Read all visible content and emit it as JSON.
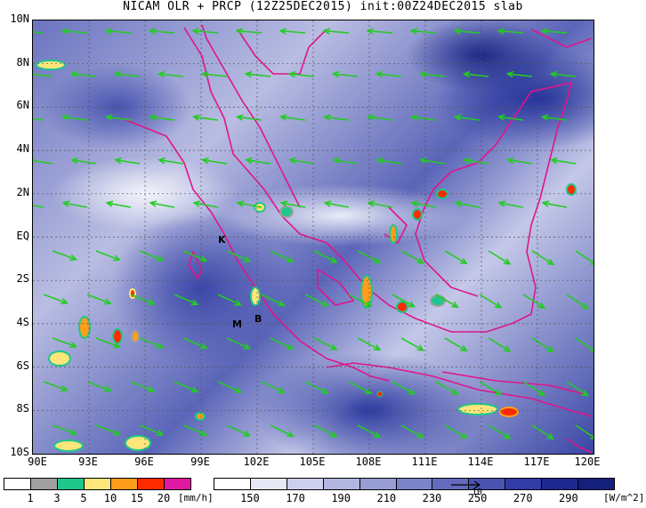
{
  "title": "NICAM OLR + PRCP (12Z25DEC2015) init:00Z24DEC2015 slab",
  "y_ticks": [
    "10N",
    "8N",
    "6N",
    "4N",
    "2N",
    "EQ",
    "2S",
    "4S",
    "6S",
    "8S",
    "10S"
  ],
  "x_ticks": [
    "90E",
    "93E",
    "96E",
    "99E",
    "102E",
    "105E",
    "108E",
    "111E",
    "114E",
    "117E",
    "120E"
  ],
  "markers": [
    {
      "label": "K"
    },
    {
      "label": "M"
    },
    {
      "label": "B"
    }
  ],
  "precip_colorbar": {
    "labels": [
      "1",
      "3",
      "5",
      "10",
      "15",
      "20"
    ],
    "unit": "[mm/h]",
    "colors": [
      "#ffffff",
      "#a0a0a0",
      "#1fc78c",
      "#ffe67a",
      "#ff9d1a",
      "#ff2a00",
      "#e01aa0"
    ]
  },
  "olr_colorbar": {
    "labels": [
      "150",
      "170",
      "190",
      "210",
      "230",
      "250",
      "270",
      "290"
    ],
    "unit": "[W/m^2]",
    "colors": [
      "#ffffff",
      "#e6e8f6",
      "#cdd0ec",
      "#b2b6e0",
      "#989dd4",
      "#7e84c8",
      "#646bbd",
      "#4b53b1",
      "#323ba6",
      "#1e2890",
      "#14207c"
    ]
  },
  "vector_reference": "10",
  "chart_data": {
    "type": "heatmap",
    "title": "NICAM OLR + PRCP (12Z25DEC2015) init:00Z24DEC2015 slab",
    "xlim": [
      90,
      120
    ],
    "ylim": [
      -10,
      10
    ],
    "grid": true
  }
}
